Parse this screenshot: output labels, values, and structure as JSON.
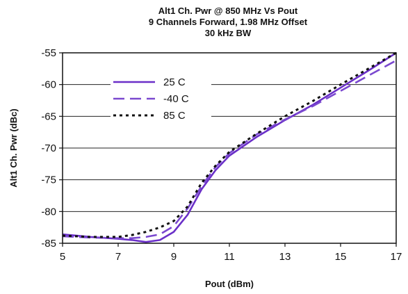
{
  "chart_data": {
    "type": "line",
    "title_lines": [
      "Alt1 Ch. Pwr @ 850 MHz Vs Pout",
      "9 Channels Forward, 1.98 MHz Offset",
      "30 kHz BW"
    ],
    "xlabel": "Pout (dBm)",
    "ylabel": "Alt1 Ch. Pwr (dBc)",
    "xlim": [
      5,
      17
    ],
    "ylim": [
      -85,
      -55
    ],
    "xticks": [
      5,
      7,
      9,
      11,
      13,
      15,
      17
    ],
    "yticks": [
      -55,
      -60,
      -65,
      -70,
      -75,
      -80,
      -85
    ],
    "grid": "horizontal",
    "legend_position": "top-left",
    "series": [
      {
        "name": "25 C",
        "style": "solid",
        "color": "#6a2fc8",
        "x": [
          5,
          6,
          7,
          7.5,
          8,
          8.5,
          9,
          9.5,
          10,
          10.5,
          11,
          12,
          13,
          14,
          15,
          16,
          17
        ],
        "y": [
          -83.6,
          -84.0,
          -84.3,
          -84.5,
          -84.8,
          -84.5,
          -83.2,
          -80.5,
          -76.5,
          -73.5,
          -71.2,
          -68.2,
          -65.6,
          -63.2,
          -60.5,
          -57.8,
          -55.0
        ]
      },
      {
        "name": "-40 C",
        "style": "dashed",
        "color": "#7a48cf",
        "x": [
          5,
          6,
          7,
          7.5,
          8,
          8.5,
          9,
          9.5,
          10,
          10.5,
          11,
          12,
          13,
          14,
          15,
          16,
          17
        ],
        "y": [
          -83.9,
          -84.1,
          -84.2,
          -84.2,
          -84.0,
          -83.6,
          -82.3,
          -79.5,
          -76.0,
          -73.0,
          -70.8,
          -67.8,
          -65.5,
          -63.4,
          -61.0,
          -58.6,
          -56.2
        ]
      },
      {
        "name": "85 C",
        "style": "dotted",
        "color": "#111111",
        "x": [
          5,
          6,
          7,
          7.5,
          8,
          8.5,
          9,
          9.5,
          10,
          10.5,
          11,
          12,
          13,
          14,
          15,
          16,
          17
        ],
        "y": [
          -83.8,
          -84.0,
          -84.0,
          -83.7,
          -83.2,
          -82.5,
          -81.5,
          -79.2,
          -75.5,
          -72.8,
          -70.6,
          -67.7,
          -65.0,
          -62.6,
          -60.0,
          -57.5,
          -55.0
        ]
      }
    ]
  }
}
